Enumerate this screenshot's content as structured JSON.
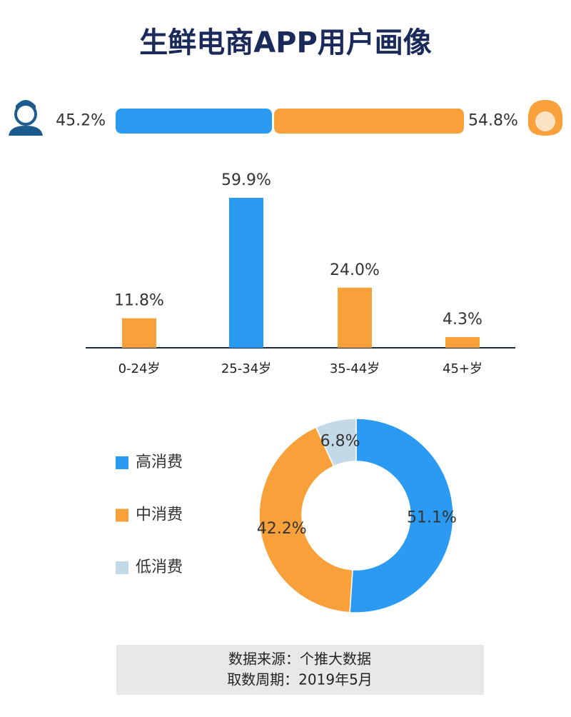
{
  "header": {
    "title": "生鲜电商APP用户画像"
  },
  "chart_data": [
    {
      "type": "stacked_bar",
      "values": [
        45.2,
        54.8
      ],
      "value_labels": [
        "45.2%",
        "54.8%"
      ],
      "colors": [
        "#2b9af3",
        "#f8a039"
      ]
    },
    {
      "type": "bar",
      "categories": [
        "0-24岁",
        "25-34岁",
        "35-44岁",
        "45+岁"
      ],
      "values": [
        11.8,
        59.9,
        24.0,
        4.3
      ],
      "value_labels": [
        "11.8%",
        "59.9%",
        "24.0%",
        "4.3%"
      ],
      "colors": [
        "#f8a039",
        "#2b9af3",
        "#f8a039",
        "#f8a039"
      ]
    },
    {
      "type": "donut",
      "categories": [
        "高消费",
        "中消费",
        "低消费"
      ],
      "values": [
        51.1,
        42.2,
        6.8
      ],
      "value_labels": [
        "51.1%",
        "42.2%",
        "6.8%"
      ],
      "colors": [
        "#2b9af3",
        "#f8a039",
        "#c3d9e8"
      ],
      "legend": "left"
    }
  ],
  "footer": {
    "lines": [
      "数据来源：个推大数据",
      "取数周期：2019年5月"
    ]
  }
}
